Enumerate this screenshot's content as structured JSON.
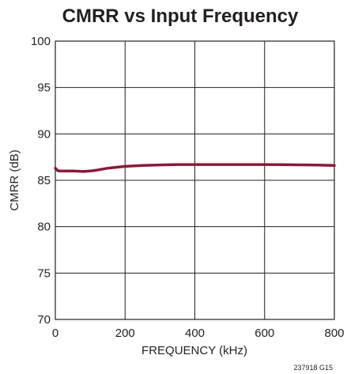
{
  "chart_data": {
    "type": "line",
    "title": "CMRR vs Input Frequency",
    "xlabel": "FREQUENCY (kHz)",
    "ylabel": "CMRR (dB)",
    "xlim": [
      0,
      800
    ],
    "ylim": [
      70,
      100
    ],
    "xticks": [
      0,
      200,
      400,
      600,
      800
    ],
    "yticks": [
      70,
      75,
      80,
      85,
      90,
      95,
      100
    ],
    "grid": true,
    "series": [
      {
        "color": "#8b1a3a",
        "x": [
          0,
          5,
          10,
          20,
          50,
          80,
          100,
          120,
          150,
          200,
          250,
          300,
          350,
          400,
          450,
          500,
          550,
          600,
          650,
          700,
          750,
          800
        ],
        "y": [
          86.3,
          86.1,
          86.0,
          86.0,
          86.0,
          85.95,
          86.0,
          86.1,
          86.3,
          86.5,
          86.6,
          86.65,
          86.7,
          86.7,
          86.7,
          86.7,
          86.7,
          86.7,
          86.68,
          86.66,
          86.64,
          86.6
        ]
      }
    ],
    "footnote": "237918 G15"
  }
}
